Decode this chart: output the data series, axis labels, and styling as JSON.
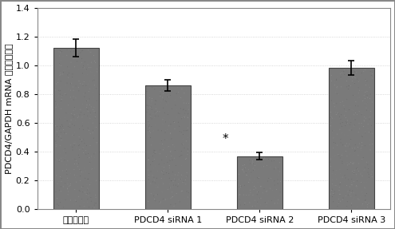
{
  "categories": [
    "随机对照组",
    "PDCD4 siRNA 1",
    "PDCD4 siRNA 2",
    "PDCD4 siRNA 3"
  ],
  "values": [
    1.12,
    0.86,
    0.37,
    0.98
  ],
  "errors": [
    0.06,
    0.04,
    0.025,
    0.05
  ],
  "bar_color": "#7a7a7a",
  "bar_edge_color": "#444444",
  "ylabel": "PDCD4/GAPDH mRNA 相对表达水平",
  "ylim": [
    0,
    1.4
  ],
  "yticks": [
    0,
    0.2,
    0.4,
    0.6,
    0.8,
    1.0,
    1.2,
    1.4
  ],
  "asterisk_index": 2,
  "asterisk_text": "*",
  "figure_bg": "#ffffff",
  "plot_bg": "#ffffff",
  "bar_width": 0.5,
  "ylabel_fontsize": 8,
  "tick_fontsize": 8,
  "xlabel_fontsize": 8,
  "grid_color": "#cccccc",
  "border_color": "#888888"
}
